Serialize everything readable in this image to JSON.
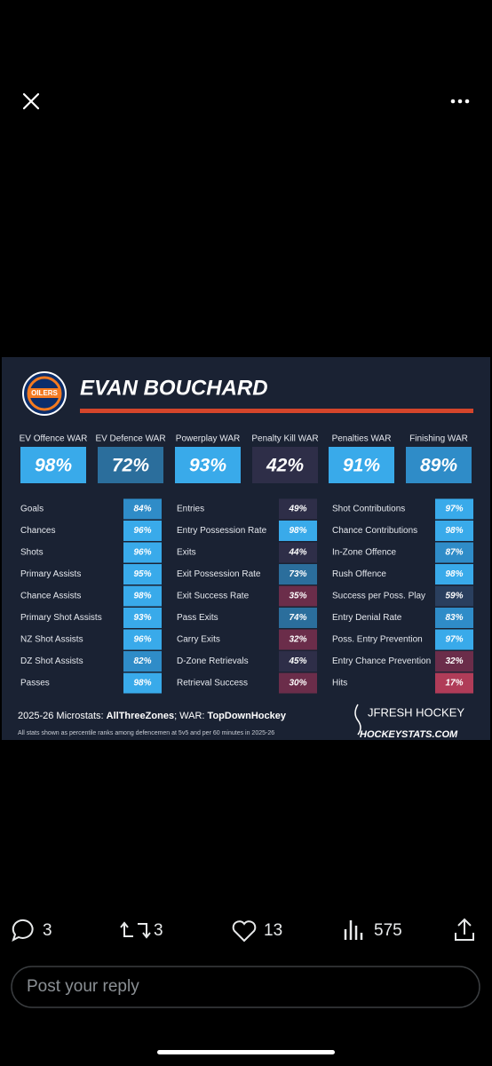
{
  "card": {
    "player": "EVAN BOUCHARD",
    "logo_text": "OILERS",
    "war": [
      {
        "label": "EV Offence WAR",
        "value": "98%"
      },
      {
        "label": "EV Defence WAR",
        "value": "72%"
      },
      {
        "label": "Powerplay WAR",
        "value": "93%"
      },
      {
        "label": "Penalty Kill WAR",
        "value": "42%"
      },
      {
        "label": "Penalties WAR",
        "value": "91%"
      },
      {
        "label": "Finishing WAR",
        "value": "89%"
      }
    ],
    "columns": [
      [
        [
          "Goals",
          "84%"
        ],
        [
          "Chances",
          "96%"
        ],
        [
          "Shots",
          "96%"
        ],
        [
          "Primary Assists",
          "95%"
        ],
        [
          "Chance Assists",
          "98%"
        ],
        [
          "Primary Shot Assists",
          "93%"
        ],
        [
          "NZ Shot Assists",
          "96%"
        ],
        [
          "DZ Shot Assists",
          "82%"
        ],
        [
          "Passes",
          "98%"
        ]
      ],
      [
        [
          "Entries",
          "49%"
        ],
        [
          "Entry Possession Rate",
          "98%"
        ],
        [
          "Exits",
          "44%"
        ],
        [
          "Exit Possession Rate",
          "73%"
        ],
        [
          "Exit Success Rate",
          "35%"
        ],
        [
          "Pass Exits",
          "74%"
        ],
        [
          "Carry Exits",
          "32%"
        ],
        [
          "D-Zone Retrievals",
          "45%"
        ],
        [
          "Retrieval Success",
          "30%"
        ]
      ],
      [
        [
          "Shot Contributions",
          "97%"
        ],
        [
          "Chance Contributions",
          "98%"
        ],
        [
          "In-Zone Offence",
          "87%"
        ],
        [
          "Rush Offence",
          "98%"
        ],
        [
          "Success per Poss. Play",
          "59%"
        ],
        [
          "Entry Denial Rate",
          "83%"
        ],
        [
          "Poss. Entry Prevention",
          "97%"
        ],
        [
          "Entry Chance Prevention",
          "32%"
        ],
        [
          "Hits",
          "17%"
        ]
      ]
    ],
    "source": [
      "2025-26 Microstats: ",
      "AllThreeZones",
      "; WAR: ",
      "TopDownHockey"
    ],
    "note": "All stats shown as percentile ranks among defencemen at 5v5 and per 60 minutes in 2025-26",
    "brand1": "JFRESH HOCKEY",
    "brand2": "HOCKEYSTATS.COM"
  },
  "actions": {
    "replies": "3",
    "reposts": "3",
    "likes": "13",
    "views": "575"
  },
  "reply_placeholder": "Post your reply"
}
